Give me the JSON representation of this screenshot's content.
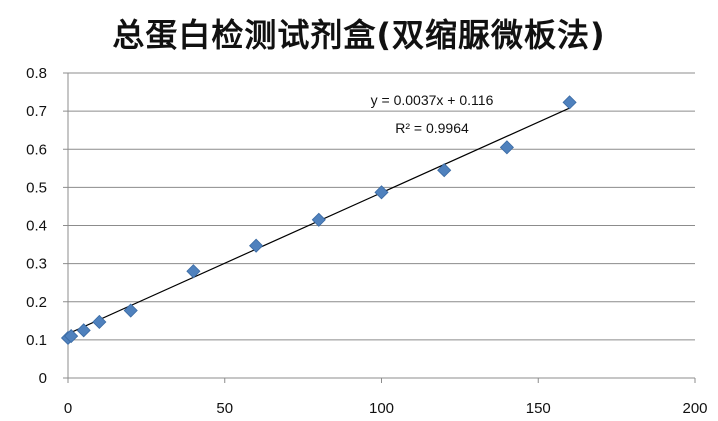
{
  "chart_data": {
    "type": "scatter",
    "title": "总蛋白检测试剂盒(双缩脲微板法)",
    "xlim": [
      0,
      200
    ],
    "ylim": [
      0,
      0.8
    ],
    "x_ticks": [
      "0",
      "50",
      "100",
      "150",
      "200"
    ],
    "y_ticks": [
      "0",
      "0.1",
      "0.2",
      "0.3",
      "0.4",
      "0.5",
      "0.6",
      "0.7",
      "0.8"
    ],
    "grid": "horizontal",
    "legend": "none",
    "series": [
      {
        "x": [
          0,
          1,
          5,
          10,
          20,
          40,
          60,
          80,
          100,
          120,
          140,
          160
        ],
        "y": [
          0.105,
          0.11,
          0.125,
          0.147,
          0.177,
          0.28,
          0.347,
          0.415,
          0.487,
          0.545,
          0.605,
          0.723
        ],
        "marker": "diamond",
        "color": "#4f81bd"
      }
    ],
    "trendline": {
      "slope": 0.0037,
      "intercept": 0.116,
      "x_range": [
        0,
        160
      ],
      "equation": "y = 0.0037x + 0.116",
      "r_squared": "R² = 0.9964",
      "color": "#000000"
    }
  }
}
